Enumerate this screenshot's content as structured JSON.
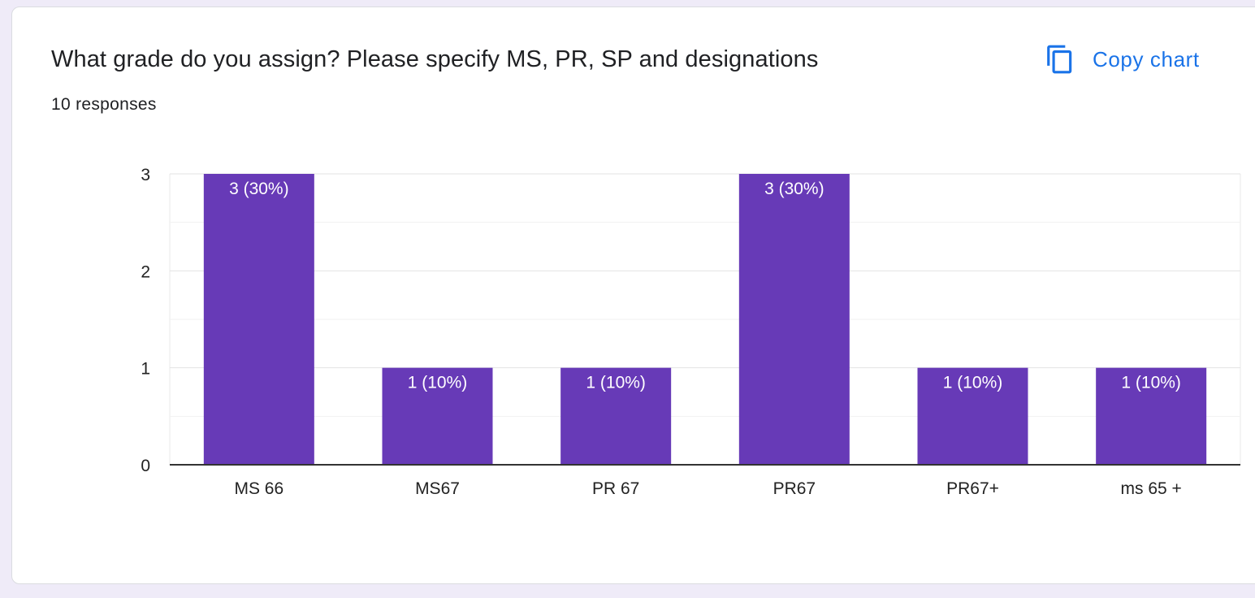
{
  "card": {
    "title": "What grade do you assign? Please specify MS, PR, SP and designations",
    "responses": "10 responses",
    "copy_label": "Copy chart",
    "copy_icon": "copy-icon"
  },
  "colors": {
    "bar": "#673ab7",
    "accent": "#1a73e8",
    "page_bg": "#efebf8"
  },
  "chart_data": {
    "type": "bar",
    "categories": [
      "MS 66",
      "MS67",
      "PR 67",
      "PR67",
      "PR67+",
      "ms 65 +"
    ],
    "values": [
      3,
      1,
      1,
      3,
      1,
      1
    ],
    "data_labels": [
      "3 (30%)",
      "1 (10%)",
      "1 (10%)",
      "3 (30%)",
      "1 (10%)",
      "1 (10%)"
    ],
    "yticks": [
      0,
      1,
      2,
      3
    ],
    "ylim": [
      0,
      3
    ],
    "grid": true,
    "title": "",
    "xlabel": "",
    "ylabel": ""
  }
}
